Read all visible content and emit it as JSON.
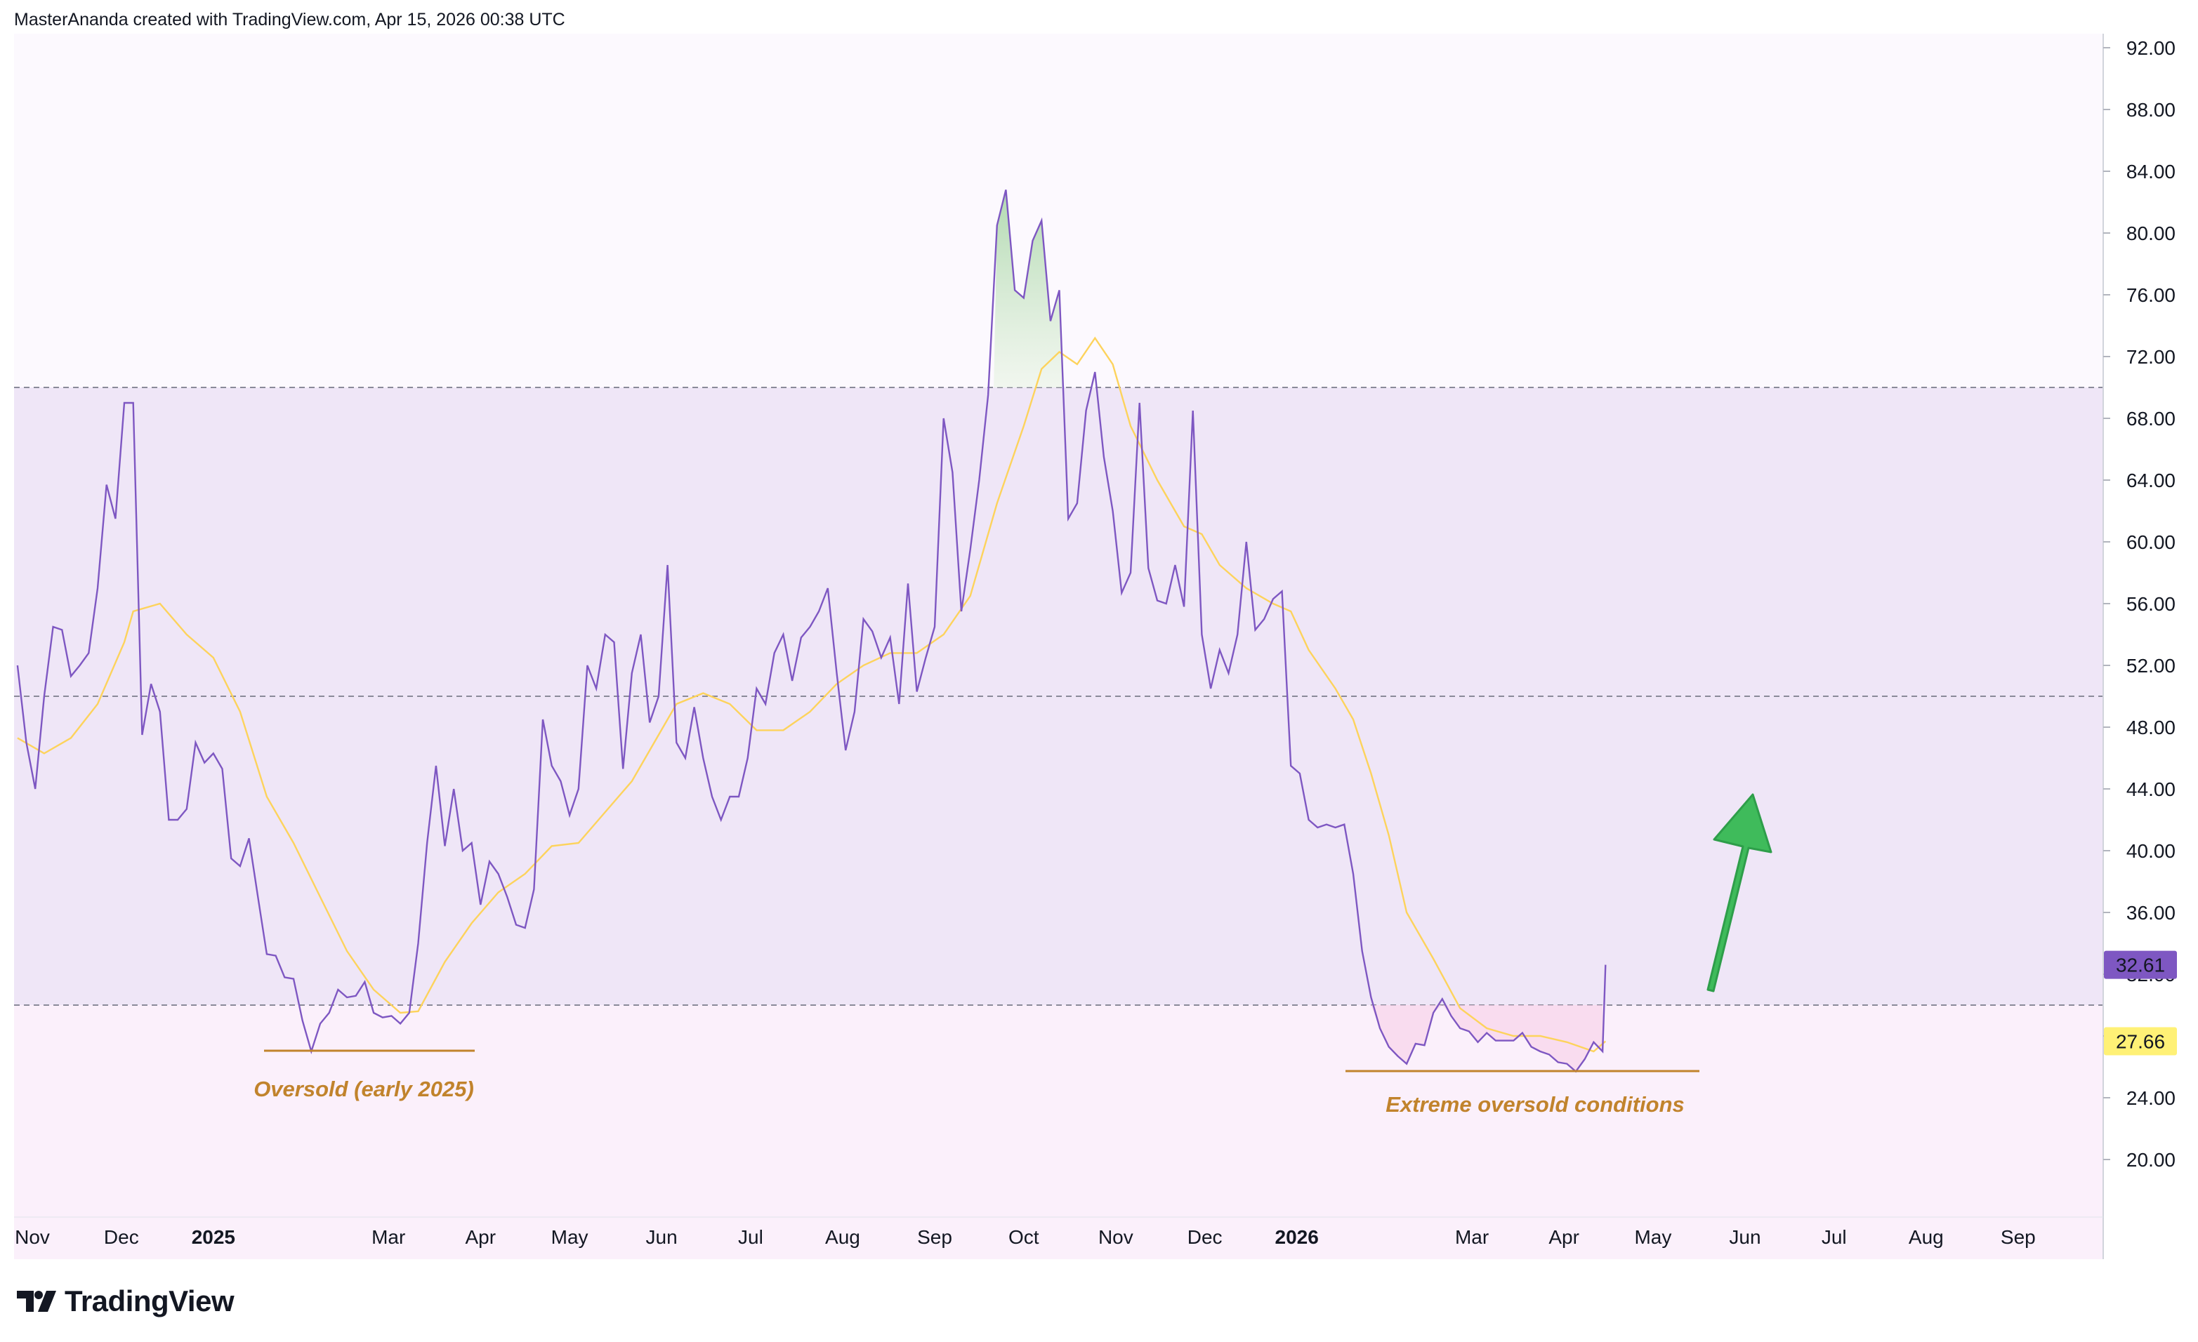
{
  "header": {
    "attribution": "MasterAnanda created with TradingView.com, Apr 15, 2026 00:38 UTC"
  },
  "brand": {
    "logo_text": "TradingView"
  },
  "colors": {
    "rsi_line": "#7e57c2",
    "ma_line": "#fdd35c",
    "band_fill": "#efe6f7",
    "upper_zone": "#fcf9fe",
    "lower_zone": "#fbf0fb",
    "annotation": "#c1832c",
    "arrow": "#3fbb5b",
    "price_badge_rsi": "#7e57c2",
    "price_badge_ma": "#fff176"
  },
  "annotations": {
    "left_label": "Oversold (early 2025)",
    "right_label": "Extreme oversold conditions",
    "arrow_icon": "up-arrow-icon"
  },
  "chart_data": {
    "type": "line",
    "title": "",
    "xlabel": "",
    "ylabel": "",
    "ylim": [
      16,
      94
    ],
    "grid": false,
    "x_ticks": [
      {
        "label": "Nov",
        "date": "2024-11-01",
        "bold": false
      },
      {
        "label": "Dec",
        "date": "2024-12-01",
        "bold": false
      },
      {
        "label": "2025",
        "date": "2025-01-01",
        "bold": true
      },
      {
        "label": "Mar",
        "date": "2025-03-01",
        "bold": false
      },
      {
        "label": "Apr",
        "date": "2025-04-01",
        "bold": false
      },
      {
        "label": "May",
        "date": "2025-05-01",
        "bold": false
      },
      {
        "label": "Jun",
        "date": "2025-06-01",
        "bold": false
      },
      {
        "label": "Jul",
        "date": "2025-07-01",
        "bold": false
      },
      {
        "label": "Aug",
        "date": "2025-08-01",
        "bold": false
      },
      {
        "label": "Sep",
        "date": "2025-09-01",
        "bold": false
      },
      {
        "label": "Oct",
        "date": "2025-10-01",
        "bold": false
      },
      {
        "label": "Nov",
        "date": "2025-11-01",
        "bold": false
      },
      {
        "label": "Dec",
        "date": "2025-12-01",
        "bold": false
      },
      {
        "label": "2026",
        "date": "2026-01-01",
        "bold": true
      },
      {
        "label": "Mar",
        "date": "2026-03-01",
        "bold": false
      },
      {
        "label": "Apr",
        "date": "2026-04-01",
        "bold": false
      },
      {
        "label": "May",
        "date": "2026-05-01",
        "bold": false
      },
      {
        "label": "Jun",
        "date": "2026-06-01",
        "bold": false
      },
      {
        "label": "Jul",
        "date": "2026-07-01",
        "bold": false
      },
      {
        "label": "Aug",
        "date": "2026-08-01",
        "bold": false
      },
      {
        "label": "Sep",
        "date": "2026-09-01",
        "bold": false
      }
    ],
    "y_ticks": [
      "92.00",
      "88.00",
      "84.00",
      "80.00",
      "76.00",
      "72.00",
      "68.00",
      "64.00",
      "60.00",
      "56.00",
      "52.00",
      "48.00",
      "44.00",
      "40.00",
      "36.00",
      "32.00",
      "28.00",
      "24.00",
      "20.00"
    ],
    "levels": {
      "upper": 70,
      "middle": 50,
      "lower": 30
    },
    "series": [
      {
        "key": "rsi",
        "points": [
          [
            "2024-10-27",
            52
          ],
          [
            "2024-10-30",
            47
          ],
          [
            "2024-11-02",
            44
          ],
          [
            "2024-11-05",
            50
          ],
          [
            "2024-11-08",
            54.5
          ],
          [
            "2024-11-11",
            54.3
          ],
          [
            "2024-11-14",
            51.3
          ],
          [
            "2024-11-17",
            52
          ],
          [
            "2024-11-20",
            52.8
          ],
          [
            "2024-11-23",
            57
          ],
          [
            "2024-11-26",
            63.7
          ],
          [
            "2024-11-29",
            61.5
          ],
          [
            "2024-12-02",
            69
          ],
          [
            "2024-12-05",
            69
          ],
          [
            "2024-12-08",
            47.5
          ],
          [
            "2024-12-11",
            50.8
          ],
          [
            "2024-12-14",
            49
          ],
          [
            "2024-12-17",
            42
          ],
          [
            "2024-12-20",
            42
          ],
          [
            "2024-12-23",
            42.7
          ],
          [
            "2024-12-26",
            47
          ],
          [
            "2024-12-29",
            45.7
          ],
          [
            "2025-01-01",
            46.3
          ],
          [
            "2025-01-04",
            45.3
          ],
          [
            "2025-01-07",
            39.5
          ],
          [
            "2025-01-10",
            39
          ],
          [
            "2025-01-13",
            40.8
          ],
          [
            "2025-01-16",
            37
          ],
          [
            "2025-01-19",
            33.3
          ],
          [
            "2025-01-22",
            33.2
          ],
          [
            "2025-01-25",
            31.8
          ],
          [
            "2025-01-28",
            31.7
          ],
          [
            "2025-01-31",
            29
          ],
          [
            "2025-02-03",
            27
          ],
          [
            "2025-02-06",
            28.8
          ],
          [
            "2025-02-09",
            29.5
          ],
          [
            "2025-02-12",
            31
          ],
          [
            "2025-02-15",
            30.5
          ],
          [
            "2025-02-18",
            30.6
          ],
          [
            "2025-02-21",
            31.5
          ],
          [
            "2025-02-24",
            29.5
          ],
          [
            "2025-02-27",
            29.2
          ],
          [
            "2025-03-02",
            29.3
          ],
          [
            "2025-03-05",
            28.8
          ],
          [
            "2025-03-08",
            29.5
          ],
          [
            "2025-03-11",
            34
          ],
          [
            "2025-03-14",
            40.5
          ],
          [
            "2025-03-17",
            45.5
          ],
          [
            "2025-03-20",
            40.3
          ],
          [
            "2025-03-23",
            44
          ],
          [
            "2025-03-26",
            40
          ],
          [
            "2025-03-29",
            40.5
          ],
          [
            "2025-04-01",
            36.5
          ],
          [
            "2025-04-04",
            39.3
          ],
          [
            "2025-04-07",
            38.5
          ],
          [
            "2025-04-10",
            37
          ],
          [
            "2025-04-13",
            35.2
          ],
          [
            "2025-04-16",
            35
          ],
          [
            "2025-04-19",
            37.5
          ],
          [
            "2025-04-22",
            48.5
          ],
          [
            "2025-04-25",
            45.5
          ],
          [
            "2025-04-28",
            44.5
          ],
          [
            "2025-05-01",
            42.3
          ],
          [
            "2025-05-04",
            44
          ],
          [
            "2025-05-07",
            52
          ],
          [
            "2025-05-10",
            50.5
          ],
          [
            "2025-05-13",
            54
          ],
          [
            "2025-05-16",
            53.5
          ],
          [
            "2025-05-19",
            45.3
          ],
          [
            "2025-05-22",
            51.5
          ],
          [
            "2025-05-25",
            54
          ],
          [
            "2025-05-28",
            48.3
          ],
          [
            "2025-05-31",
            50
          ],
          [
            "2025-06-03",
            58.5
          ],
          [
            "2025-06-06",
            47
          ],
          [
            "2025-06-09",
            46
          ],
          [
            "2025-06-12",
            49.3
          ],
          [
            "2025-06-15",
            46
          ],
          [
            "2025-06-18",
            43.5
          ],
          [
            "2025-06-21",
            42
          ],
          [
            "2025-06-24",
            43.5
          ],
          [
            "2025-06-27",
            43.5
          ],
          [
            "2025-06-30",
            46
          ],
          [
            "2025-07-03",
            50.5
          ],
          [
            "2025-07-06",
            49.5
          ],
          [
            "2025-07-09",
            52.8
          ],
          [
            "2025-07-12",
            54
          ],
          [
            "2025-07-15",
            51
          ],
          [
            "2025-07-18",
            53.8
          ],
          [
            "2025-07-21",
            54.5
          ],
          [
            "2025-07-24",
            55.5
          ],
          [
            "2025-07-27",
            57
          ],
          [
            "2025-07-30",
            51.5
          ],
          [
            "2025-08-02",
            46.5
          ],
          [
            "2025-08-05",
            49
          ],
          [
            "2025-08-08",
            55
          ],
          [
            "2025-08-11",
            54.2
          ],
          [
            "2025-08-14",
            52.5
          ],
          [
            "2025-08-17",
            53.8
          ],
          [
            "2025-08-20",
            49.5
          ],
          [
            "2025-08-23",
            57.3
          ],
          [
            "2025-08-26",
            50.3
          ],
          [
            "2025-08-29",
            52.5
          ],
          [
            "2025-09-01",
            54.5
          ],
          [
            "2025-09-04",
            68
          ],
          [
            "2025-09-07",
            64.5
          ],
          [
            "2025-09-10",
            55.5
          ],
          [
            "2025-09-13",
            59.5
          ],
          [
            "2025-09-16",
            64
          ],
          [
            "2025-09-19",
            69.5
          ],
          [
            "2025-09-22",
            80.5
          ],
          [
            "2025-09-25",
            82.8
          ],
          [
            "2025-09-28",
            76.3
          ],
          [
            "2025-10-01",
            75.8
          ],
          [
            "2025-10-04",
            79.5
          ],
          [
            "2025-10-07",
            80.8
          ],
          [
            "2025-10-10",
            74.3
          ],
          [
            "2025-10-13",
            76.3
          ],
          [
            "2025-10-16",
            61.5
          ],
          [
            "2025-10-19",
            62.5
          ],
          [
            "2025-10-22",
            68.5
          ],
          [
            "2025-10-25",
            71
          ],
          [
            "2025-10-28",
            65.5
          ],
          [
            "2025-10-31",
            62
          ],
          [
            "2025-11-03",
            56.7
          ],
          [
            "2025-11-06",
            58
          ],
          [
            "2025-11-09",
            69
          ],
          [
            "2025-11-12",
            58.3
          ],
          [
            "2025-11-15",
            56.2
          ],
          [
            "2025-11-18",
            56
          ],
          [
            "2025-11-21",
            58.5
          ],
          [
            "2025-11-24",
            55.8
          ],
          [
            "2025-11-27",
            68.5
          ],
          [
            "2025-11-30",
            54
          ],
          [
            "2025-12-03",
            50.5
          ],
          [
            "2025-12-06",
            53
          ],
          [
            "2025-12-09",
            51.5
          ],
          [
            "2025-12-12",
            54
          ],
          [
            "2025-12-15",
            60
          ],
          [
            "2025-12-18",
            54.3
          ],
          [
            "2025-12-21",
            55
          ],
          [
            "2025-12-24",
            56.3
          ],
          [
            "2025-12-27",
            56.8
          ],
          [
            "2025-12-30",
            45.5
          ],
          [
            "2026-01-02",
            45
          ],
          [
            "2026-01-05",
            42
          ],
          [
            "2026-01-08",
            41.5
          ],
          [
            "2026-01-11",
            41.7
          ],
          [
            "2026-01-14",
            41.5
          ],
          [
            "2026-01-17",
            41.7
          ],
          [
            "2026-01-20",
            38.5
          ],
          [
            "2026-01-23",
            33.5
          ],
          [
            "2026-01-26",
            30.5
          ],
          [
            "2026-01-29",
            28.5
          ],
          [
            "2026-02-01",
            27.3
          ],
          [
            "2026-02-04",
            26.7
          ],
          [
            "2026-02-07",
            26.2
          ],
          [
            "2026-02-10",
            27.5
          ],
          [
            "2026-02-13",
            27.4
          ],
          [
            "2026-02-16",
            29.5
          ],
          [
            "2026-02-19",
            30.4
          ],
          [
            "2026-02-22",
            29.3
          ],
          [
            "2026-02-25",
            28.5
          ],
          [
            "2026-02-28",
            28.3
          ],
          [
            "2026-03-03",
            27.6
          ],
          [
            "2026-03-06",
            28.2
          ],
          [
            "2026-03-09",
            27.7
          ],
          [
            "2026-03-12",
            27.7
          ],
          [
            "2026-03-15",
            27.7
          ],
          [
            "2026-03-18",
            28.2
          ],
          [
            "2026-03-21",
            27.3
          ],
          [
            "2026-03-24",
            27
          ],
          [
            "2026-03-27",
            26.8
          ],
          [
            "2026-03-30",
            26.3
          ],
          [
            "2026-04-02",
            26.2
          ],
          [
            "2026-04-05",
            25.7
          ],
          [
            "2026-04-08",
            26.5
          ],
          [
            "2026-04-11",
            27.6
          ],
          [
            "2026-04-14",
            27
          ],
          [
            "2026-04-15",
            32.61
          ]
        ]
      },
      {
        "key": "rsi_ma",
        "points": [
          [
            "2024-10-27",
            47.3
          ],
          [
            "2024-11-05",
            46.3
          ],
          [
            "2024-11-14",
            47.3
          ],
          [
            "2024-11-23",
            49.5
          ],
          [
            "2024-12-02",
            53.5
          ],
          [
            "2024-12-05",
            55.5
          ],
          [
            "2024-12-14",
            56
          ],
          [
            "2024-12-23",
            54
          ],
          [
            "2025-01-01",
            52.5
          ],
          [
            "2025-01-10",
            49
          ],
          [
            "2025-01-19",
            43.5
          ],
          [
            "2025-01-28",
            40.5
          ],
          [
            "2025-02-06",
            37
          ],
          [
            "2025-02-15",
            33.5
          ],
          [
            "2025-02-24",
            31
          ],
          [
            "2025-03-05",
            29.5
          ],
          [
            "2025-03-11",
            29.6
          ],
          [
            "2025-03-20",
            32.8
          ],
          [
            "2025-03-29",
            35.3
          ],
          [
            "2025-04-07",
            37.3
          ],
          [
            "2025-04-16",
            38.5
          ],
          [
            "2025-04-25",
            40.3
          ],
          [
            "2025-05-04",
            40.5
          ],
          [
            "2025-05-13",
            42.5
          ],
          [
            "2025-05-22",
            44.5
          ],
          [
            "2025-05-31",
            47.5
          ],
          [
            "2025-06-06",
            49.5
          ],
          [
            "2025-06-15",
            50.2
          ],
          [
            "2025-06-24",
            49.5
          ],
          [
            "2025-07-03",
            47.8
          ],
          [
            "2025-07-12",
            47.8
          ],
          [
            "2025-07-21",
            49
          ],
          [
            "2025-07-30",
            50.8
          ],
          [
            "2025-08-08",
            52
          ],
          [
            "2025-08-17",
            52.8
          ],
          [
            "2025-08-26",
            52.8
          ],
          [
            "2025-09-04",
            54
          ],
          [
            "2025-09-13",
            56.5
          ],
          [
            "2025-09-22",
            62.5
          ],
          [
            "2025-10-01",
            67.5
          ],
          [
            "2025-10-07",
            71.2
          ],
          [
            "2025-10-13",
            72.3
          ],
          [
            "2025-10-19",
            71.5
          ],
          [
            "2025-10-25",
            73.2
          ],
          [
            "2025-10-31",
            71.5
          ],
          [
            "2025-11-06",
            67.5
          ],
          [
            "2025-11-15",
            64
          ],
          [
            "2025-11-24",
            61
          ],
          [
            "2025-11-30",
            60.5
          ],
          [
            "2025-12-06",
            58.5
          ],
          [
            "2025-12-15",
            57
          ],
          [
            "2025-12-24",
            56
          ],
          [
            "2025-12-30",
            55.5
          ],
          [
            "2026-01-05",
            53
          ],
          [
            "2026-01-14",
            50.5
          ],
          [
            "2026-01-20",
            48.5
          ],
          [
            "2026-01-26",
            45
          ],
          [
            "2026-02-01",
            41
          ],
          [
            "2026-02-07",
            36
          ],
          [
            "2026-02-16",
            33
          ],
          [
            "2026-02-25",
            29.8
          ],
          [
            "2026-03-06",
            28.5
          ],
          [
            "2026-03-15",
            28
          ],
          [
            "2026-03-24",
            28
          ],
          [
            "2026-04-02",
            27.6
          ],
          [
            "2026-04-11",
            27
          ],
          [
            "2026-04-15",
            27.66
          ]
        ]
      }
    ],
    "last_values": {
      "rsi": "32.61",
      "rsi_ma": "27.66"
    }
  }
}
